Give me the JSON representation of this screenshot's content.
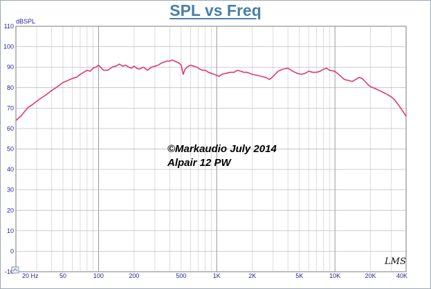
{
  "chart_data": {
    "type": "line",
    "title": "SPL vs Freq",
    "ylabel": "dBSPL",
    "x_scale": "log",
    "xlim": [
      20,
      40000
    ],
    "ylim": [
      -10,
      110
    ],
    "grid": true,
    "y_ticks": [
      {
        "value": 110,
        "label": "110"
      },
      {
        "value": 100,
        "label": "100"
      },
      {
        "value": 90,
        "label": "90"
      },
      {
        "value": 80,
        "label": "80"
      },
      {
        "value": 70,
        "label": "70"
      },
      {
        "value": 60,
        "label": "60"
      },
      {
        "value": 50,
        "label": "50"
      },
      {
        "value": 40,
        "label": "40"
      },
      {
        "value": 30,
        "label": "30"
      },
      {
        "value": 20,
        "label": "20"
      },
      {
        "value": 10,
        "label": "10"
      },
      {
        "value": 0,
        "label": "0"
      },
      {
        "value": -10,
        "label": "-10"
      }
    ],
    "x_ticks": [
      {
        "value": 20,
        "label": "20 Hz"
      },
      {
        "value": 50,
        "label": "50"
      },
      {
        "value": 100,
        "label": "100"
      },
      {
        "value": 200,
        "label": "200"
      },
      {
        "value": 500,
        "label": "500"
      },
      {
        "value": 1000,
        "label": "1K"
      },
      {
        "value": 2000,
        "label": "2K"
      },
      {
        "value": 5000,
        "label": "5K"
      },
      {
        "value": 10000,
        "label": "10K"
      },
      {
        "value": 20000,
        "label": "20K"
      },
      {
        "value": 40000,
        "label": "40K"
      }
    ],
    "annotations": [
      "©Markaudio July 2014",
      "Alpair 12 PW"
    ],
    "series": [
      {
        "color": "#e0386b",
        "points": [
          [
            20,
            64
          ],
          [
            22,
            66
          ],
          [
            25,
            70
          ],
          [
            28,
            72
          ],
          [
            32,
            74.5
          ],
          [
            36,
            76.5
          ],
          [
            40,
            78.5
          ],
          [
            45,
            80.5
          ],
          [
            50,
            82.5
          ],
          [
            55,
            83.5
          ],
          [
            60,
            84.5
          ],
          [
            65,
            85
          ],
          [
            70,
            86.5
          ],
          [
            75,
            87.5
          ],
          [
            80,
            88.5
          ],
          [
            85,
            88
          ],
          [
            90,
            89.5
          ],
          [
            95,
            90
          ],
          [
            100,
            91
          ],
          [
            110,
            88.5
          ],
          [
            120,
            88.5
          ],
          [
            130,
            90
          ],
          [
            140,
            90.5
          ],
          [
            150,
            91.5
          ],
          [
            160,
            90.5
          ],
          [
            170,
            91
          ],
          [
            180,
            90
          ],
          [
            190,
            89.5
          ],
          [
            200,
            90.5
          ],
          [
            210,
            89.5
          ],
          [
            220,
            89
          ],
          [
            240,
            90
          ],
          [
            260,
            88.5
          ],
          [
            280,
            90
          ],
          [
            300,
            90.5
          ],
          [
            320,
            91
          ],
          [
            340,
            92
          ],
          [
            360,
            92.5
          ],
          [
            380,
            93
          ],
          [
            400,
            93
          ],
          [
            420,
            93.5
          ],
          [
            440,
            93
          ],
          [
            460,
            92.5
          ],
          [
            480,
            92
          ],
          [
            500,
            91
          ],
          [
            520,
            86.5
          ],
          [
            540,
            89
          ],
          [
            560,
            90
          ],
          [
            600,
            91
          ],
          [
            640,
            90.5
          ],
          [
            680,
            90
          ],
          [
            720,
            89
          ],
          [
            760,
            88.5
          ],
          [
            800,
            88.5
          ],
          [
            850,
            87.5
          ],
          [
            900,
            87
          ],
          [
            950,
            86.5
          ],
          [
            1000,
            86
          ],
          [
            1050,
            85.5
          ],
          [
            1100,
            86.5
          ],
          [
            1200,
            87
          ],
          [
            1300,
            87.5
          ],
          [
            1400,
            87.5
          ],
          [
            1500,
            88.5
          ],
          [
            1600,
            88
          ],
          [
            1700,
            87.5
          ],
          [
            1800,
            87.5
          ],
          [
            2000,
            86.5
          ],
          [
            2200,
            86
          ],
          [
            2400,
            85.5
          ],
          [
            2600,
            85
          ],
          [
            2800,
            84
          ],
          [
            3000,
            85.5
          ],
          [
            3300,
            88
          ],
          [
            3600,
            89
          ],
          [
            4000,
            89.5
          ],
          [
            4400,
            88
          ],
          [
            4800,
            87
          ],
          [
            5200,
            86.5
          ],
          [
            5600,
            87
          ],
          [
            6000,
            88
          ],
          [
            6500,
            87.5
          ],
          [
            7000,
            87.5
          ],
          [
            7500,
            88
          ],
          [
            8000,
            89
          ],
          [
            8500,
            89.5
          ],
          [
            9000,
            88.5
          ],
          [
            10000,
            88
          ],
          [
            11000,
            86
          ],
          [
            12000,
            84
          ],
          [
            13000,
            83.5
          ],
          [
            14000,
            83
          ],
          [
            15000,
            84
          ],
          [
            16000,
            85
          ],
          [
            17000,
            84.5
          ],
          [
            18000,
            83
          ],
          [
            19000,
            81.5
          ],
          [
            20000,
            80.5
          ],
          [
            22000,
            79.5
          ],
          [
            24000,
            78.5
          ],
          [
            26000,
            77.5
          ],
          [
            28000,
            76.5
          ],
          [
            30000,
            75.5
          ],
          [
            32000,
            74
          ],
          [
            34000,
            72
          ],
          [
            36000,
            70
          ],
          [
            38000,
            68
          ],
          [
            40000,
            66
          ]
        ]
      }
    ]
  },
  "logo": "LMS"
}
